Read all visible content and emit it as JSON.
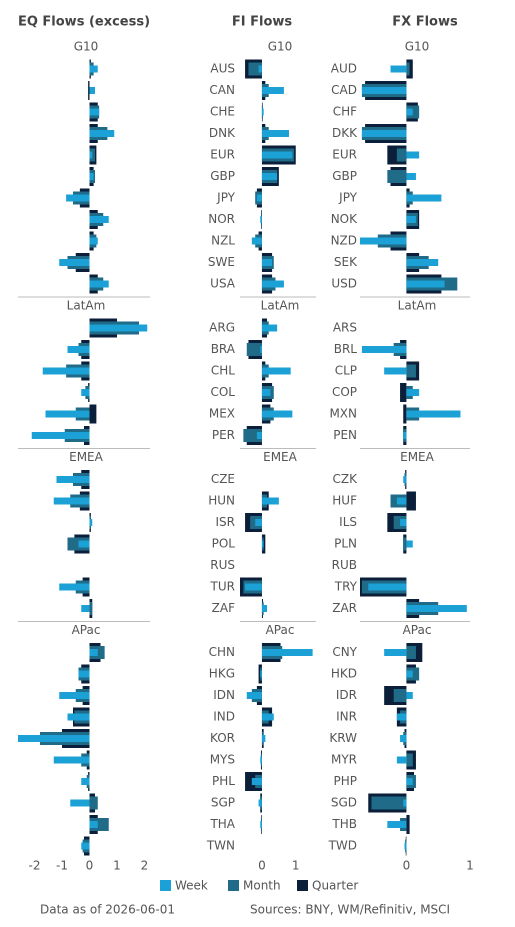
{
  "chart_data": [
    {
      "type": "bar",
      "title": "EQ Flows (excess)",
      "xlim": [
        -2.6,
        2.2
      ],
      "xticks": [
        -2,
        -1,
        0,
        1,
        2
      ],
      "groups": [
        {
          "name": "G10",
          "categories": [
            null,
            null,
            null,
            null,
            null,
            null,
            null,
            null,
            null,
            null,
            null
          ],
          "series": [
            {
              "values": [
                0.3,
                0.2,
                0.35,
                0.9,
                0.1,
                0.15,
                -0.85,
                0.7,
                0.3,
                -1.1,
                0.7
              ]
            },
            {
              "values": [
                0.15,
                0,
                0.35,
                0.65,
                0.2,
                0.2,
                -0.6,
                0.5,
                0.25,
                -0.8,
                0.5
              ]
            },
            {
              "values": [
                0.05,
                -0.05,
                0.3,
                0.3,
                0.25,
                0.15,
                -0.35,
                0.3,
                0.15,
                -0.5,
                0.3
              ]
            }
          ]
        },
        {
          "name": "LatAm",
          "categories": [
            null,
            null,
            null,
            null,
            null,
            null
          ],
          "series": [
            {
              "values": [
                2.1,
                -0.8,
                -1.7,
                -0.3,
                -1.6,
                -2.1
              ]
            },
            {
              "values": [
                1.8,
                -0.4,
                -0.85,
                -0.15,
                -0.5,
                -0.9
              ]
            },
            {
              "values": [
                1.0,
                -0.3,
                -0.3,
                -0.05,
                0.25,
                -0.2
              ]
            }
          ]
        },
        {
          "name": "EMEA",
          "categories": [
            null,
            null,
            null,
            null,
            null,
            null,
            null
          ],
          "series": [
            {
              "values": [
                -1.2,
                -1.3,
                0.1,
                -0.4,
                null,
                -1.1,
                -0.3
              ]
            },
            {
              "values": [
                -0.6,
                -0.7,
                0.05,
                -0.8,
                null,
                -0.5,
                0.1
              ]
            },
            {
              "values": [
                -0.3,
                -0.35,
                0.05,
                -0.55,
                null,
                -0.25,
                0.1
              ]
            }
          ]
        },
        {
          "name": "APac",
          "categories": [
            null,
            null,
            null,
            null,
            null,
            null,
            null,
            null,
            null,
            null
          ],
          "series": [
            {
              "values": [
                0.3,
                -0.4,
                -1.1,
                -0.8,
                -2.6,
                -1.3,
                -0.3,
                -0.7,
                0.3,
                -0.3
              ]
            },
            {
              "values": [
                0.55,
                -0.4,
                -0.5,
                -0.55,
                -1.8,
                -0.3,
                -0.1,
                0.3,
                0.7,
                -0.25
              ]
            },
            {
              "values": [
                0.4,
                -0.3,
                -0.25,
                -0.6,
                -1.0,
                -0.1,
                -0.05,
                0.2,
                0.3,
                -0.2
              ]
            }
          ]
        }
      ]
    },
    {
      "type": "bar",
      "title": "FI Flows",
      "xlim": [
        -0.65,
        1.6
      ],
      "xticks": [
        0,
        1
      ],
      "groups": [
        {
          "name": "G10",
          "categories": [
            "AUS",
            "CAN",
            "CHE",
            "DNK",
            "EUR",
            "GBP",
            "JPY",
            "NOR",
            "NZL",
            "SWE",
            "USA"
          ],
          "series": [
            {
              "values": [
                -0.1,
                0.65,
                0.05,
                0.8,
                0.9,
                0.45,
                -0.15,
                -0.05,
                -0.3,
                0.3,
                0.65
              ]
            },
            {
              "values": [
                -0.4,
                0.2,
                0.03,
                0.2,
                0.95,
                0.45,
                -0.2,
                -0.03,
                -0.2,
                0.35,
                0.4
              ]
            },
            {
              "values": [
                -0.5,
                0.1,
                0.02,
                0.1,
                1.0,
                0.5,
                -0.15,
                -0.02,
                -0.1,
                0.3,
                0.3
              ]
            }
          ]
        },
        {
          "name": "LatAm",
          "categories": [
            "ARG",
            "BRA",
            "CHL",
            "COL",
            "MEX",
            "PER"
          ],
          "series": [
            {
              "values": [
                0.45,
                -0.05,
                0.85,
                0.25,
                0.9,
                -0.15
              ]
            },
            {
              "values": [
                0.2,
                -0.45,
                0.2,
                0.35,
                0.35,
                -0.55
              ]
            },
            {
              "values": [
                0.15,
                -0.4,
                0.1,
                0.3,
                0.25,
                -0.45
              ]
            }
          ]
        },
        {
          "name": "EMEA",
          "categories": [
            "CZE",
            "HUN",
            "ISR",
            "POL",
            "RUS",
            "TUR",
            "ZAF"
          ],
          "series": [
            {
              "values": [
                null,
                0.5,
                -0.2,
                0.05,
                null,
                -0.5,
                0.15
              ]
            },
            {
              "values": [
                null,
                0.15,
                -0.35,
                0.05,
                null,
                -0.55,
                0.05
              ]
            },
            {
              "values": [
                null,
                0.2,
                -0.5,
                0.1,
                null,
                -0.65,
                0.03
              ]
            }
          ]
        },
        {
          "name": "APac",
          "categories": [
            "CHN",
            "HKG",
            "IDN",
            "IND",
            "KOR",
            "MYS",
            "PHL",
            "SGP",
            "THA",
            "TWN"
          ],
          "series": [
            {
              "values": [
                1.5,
                -0.05,
                -0.45,
                0.35,
                0.1,
                -0.05,
                -0.3,
                -0.1,
                -0.05,
                null
              ]
            },
            {
              "values": [
                0.6,
                -0.05,
                -0.3,
                0.2,
                0.05,
                -0.03,
                -0.2,
                -0.05,
                -0.03,
                null
              ]
            },
            {
              "values": [
                0.55,
                -0.1,
                -0.15,
                0.3,
                0.05,
                -0.03,
                -0.5,
                -0.05,
                -0.02,
                null
              ]
            }
          ]
        }
      ]
    },
    {
      "type": "bar",
      "title": "FX Flows",
      "xlim": [
        -0.73,
        1.0
      ],
      "xticks": [
        0,
        1
      ],
      "groups": [
        {
          "name": "G10",
          "categories": [
            "AUD",
            "CAD",
            "CHF",
            "DKK",
            "EUR",
            "GBP",
            "JPY",
            "NOK",
            "NZD",
            "SEK",
            "USD"
          ],
          "series": [
            {
              "values": [
                -0.25,
                -0.7,
                0.1,
                -0.7,
                0.2,
                0.15,
                0.55,
                0.15,
                -0.73,
                0.5,
                0.6
              ]
            },
            {
              "values": [
                0.05,
                -0.7,
                0.2,
                -0.7,
                -0.15,
                -0.3,
                0.1,
                0.18,
                -0.45,
                0.35,
                0.8
              ]
            },
            {
              "values": [
                0.1,
                -0.65,
                0.18,
                -0.65,
                -0.3,
                -0.25,
                0.05,
                0.2,
                -0.25,
                0.2,
                0.55
              ]
            }
          ]
        },
        {
          "name": "LatAm",
          "categories": [
            "ARS",
            "BRL",
            "CLP",
            "COP",
            "MXN",
            "PEN"
          ],
          "series": [
            {
              "values": [
                null,
                -0.7,
                -0.35,
                0.2,
                0.85,
                -0.05
              ]
            },
            {
              "values": [
                null,
                -0.2,
                0.15,
                0.1,
                0.2,
                -0.05
              ]
            },
            {
              "values": [
                null,
                -0.1,
                0.2,
                -0.1,
                -0.05,
                -0.05
              ]
            }
          ]
        },
        {
          "name": "EMEA",
          "categories": [
            "CZK",
            "HUF",
            "ILS",
            "PLN",
            "RUB",
            "TRY",
            "ZAR"
          ],
          "series": [
            {
              "values": [
                -0.05,
                -0.15,
                -0.1,
                0.1,
                null,
                -0.6,
                0.95
              ]
            },
            {
              "values": [
                -0.03,
                -0.25,
                -0.2,
                -0.05,
                null,
                -0.7,
                0.5
              ]
            },
            {
              "values": [
                -0.02,
                0.15,
                -0.3,
                -0.05,
                null,
                -0.73,
                0.2
              ]
            }
          ]
        },
        {
          "name": "APac",
          "categories": [
            "CNY",
            "HKD",
            "IDR",
            "INR",
            "KRW",
            "MYR",
            "PHP",
            "SGD",
            "THB",
            "TWD"
          ],
          "series": [
            {
              "values": [
                -0.35,
                0.1,
                0.1,
                -0.15,
                -0.1,
                -0.15,
                0.1,
                -0.05,
                -0.3,
                -0.03
              ]
            },
            {
              "values": [
                0.15,
                0.2,
                -0.2,
                -0.1,
                -0.05,
                0.1,
                0.15,
                -0.55,
                -0.1,
                -0.02
              ]
            },
            {
              "values": [
                0.25,
                0.15,
                -0.35,
                -0.15,
                -0.03,
                0.15,
                0.12,
                -0.6,
                0.05,
                -0.01
              ]
            }
          ]
        }
      ]
    }
  ],
  "legend": [
    {
      "name": "Week",
      "color": "#1ba1d6"
    },
    {
      "name": "Month",
      "color": "#1f6b88"
    },
    {
      "name": "Quarter",
      "color": "#0b1f3a"
    }
  ],
  "note": "Data as of 2026-06-01",
  "source": "Sources:  BNY, WM/Refinitiv, MSCI"
}
